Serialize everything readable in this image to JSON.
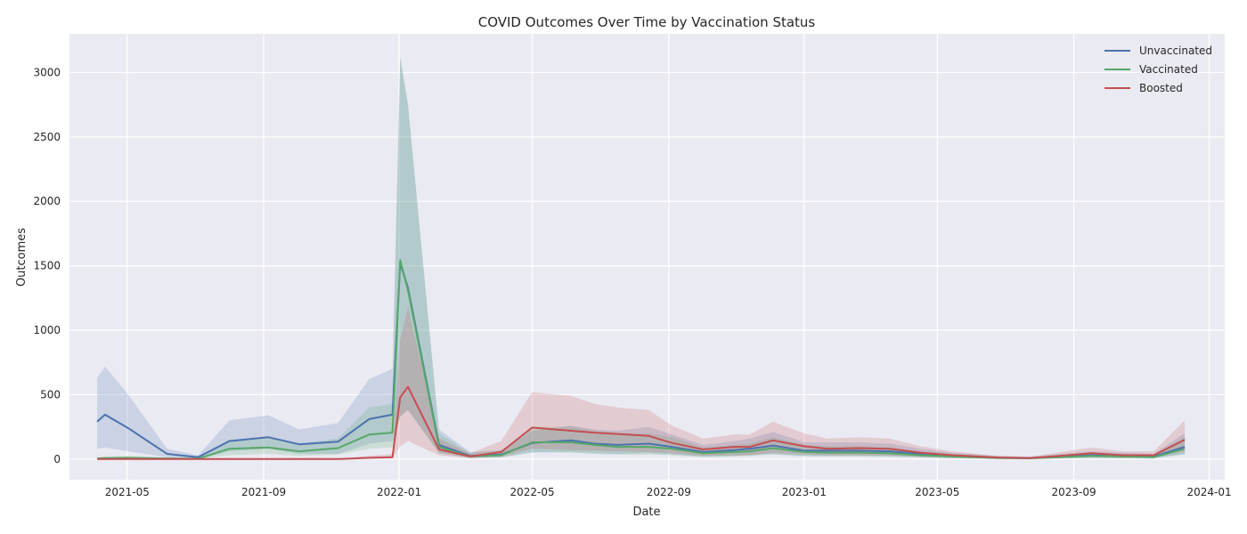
{
  "chart_data": {
    "type": "line",
    "title": "COVID Outcomes Over Time by Vaccination Status",
    "xlabel": "Date",
    "ylabel": "Outcomes",
    "xlim": [
      "2021-03-10",
      "2024-01-15"
    ],
    "ylim": [
      -160,
      3300
    ],
    "grid": true,
    "legend_position": "top-right",
    "x_ticks": [
      {
        "date": "2021-05-01",
        "label": "2021-05"
      },
      {
        "date": "2021-09-01",
        "label": "2021-09"
      },
      {
        "date": "2022-01-01",
        "label": "2022-01"
      },
      {
        "date": "2022-05-01",
        "label": "2022-05"
      },
      {
        "date": "2022-09-01",
        "label": "2022-09"
      },
      {
        "date": "2023-01-01",
        "label": "2023-01"
      },
      {
        "date": "2023-05-01",
        "label": "2023-05"
      },
      {
        "date": "2023-09-01",
        "label": "2023-09"
      },
      {
        "date": "2024-01-01",
        "label": "2024-01"
      }
    ],
    "y_ticks": [
      {
        "value": 0,
        "label": "0"
      },
      {
        "value": 500,
        "label": "500"
      },
      {
        "value": 1000,
        "label": "1000"
      },
      {
        "value": 1500,
        "label": "1500"
      },
      {
        "value": 2000,
        "label": "2000"
      },
      {
        "value": 2500,
        "label": "2500"
      },
      {
        "value": 3000,
        "label": "3000"
      }
    ],
    "x": [
      "2021-04-04",
      "2021-04-11",
      "2021-05-02",
      "2021-06-06",
      "2021-07-04",
      "2021-08-01",
      "2021-09-05",
      "2021-10-03",
      "2021-11-07",
      "2021-12-05",
      "2021-12-26",
      "2022-01-02",
      "2022-01-09",
      "2022-02-06",
      "2022-03-06",
      "2022-04-03",
      "2022-05-01",
      "2022-06-05",
      "2022-06-26",
      "2022-07-17",
      "2022-08-14",
      "2022-09-04",
      "2022-10-02",
      "2022-10-30",
      "2022-11-13",
      "2022-12-04",
      "2023-01-01",
      "2023-01-22",
      "2023-02-19",
      "2023-03-19",
      "2023-04-16",
      "2023-05-14",
      "2023-06-25",
      "2023-07-23",
      "2023-08-20",
      "2023-09-17",
      "2023-10-15",
      "2023-11-12",
      "2023-12-10"
    ],
    "series": [
      {
        "name": "Unvaccinated",
        "color": "#4c72b0",
        "values": [
          290,
          345,
          240,
          40,
          15,
          140,
          170,
          115,
          135,
          310,
          345,
          1520,
          1330,
          110,
          25,
          35,
          125,
          145,
          120,
          110,
          120,
          95,
          55,
          70,
          80,
          105,
          65,
          65,
          65,
          60,
          40,
          25,
          10,
          8,
          20,
          30,
          25,
          20,
          95
        ],
        "ci_low": [
          80,
          90,
          60,
          15,
          5,
          60,
          80,
          40,
          40,
          120,
          140,
          330,
          380,
          50,
          10,
          15,
          50,
          55,
          45,
          40,
          45,
          35,
          20,
          25,
          30,
          40,
          25,
          25,
          25,
          20,
          15,
          8,
          3,
          2,
          8,
          10,
          8,
          8,
          40
        ],
        "ci_high": [
          630,
          720,
          500,
          80,
          30,
          300,
          340,
          230,
          280,
          620,
          700,
          3120,
          2750,
          230,
          55,
          70,
          220,
          260,
          230,
          220,
          250,
          190,
          110,
          140,
          160,
          210,
          130,
          130,
          130,
          120,
          80,
          50,
          25,
          18,
          40,
          60,
          50,
          40,
          200
        ]
      },
      {
        "name": "Vaccinated",
        "color": "#55a868",
        "values": [
          5,
          8,
          10,
          5,
          3,
          80,
          90,
          60,
          85,
          190,
          205,
          1545,
          1310,
          95,
          20,
          30,
          130,
          130,
          110,
          95,
          95,
          80,
          45,
          55,
          60,
          85,
          55,
          50,
          50,
          45,
          30,
          20,
          8,
          6,
          15,
          25,
          20,
          15,
          80
        ],
        "ci_low": [
          0,
          0,
          0,
          0,
          0,
          30,
          40,
          25,
          35,
          80,
          90,
          330,
          380,
          45,
          8,
          12,
          55,
          50,
          40,
          35,
          35,
          30,
          15,
          20,
          25,
          35,
          20,
          20,
          20,
          18,
          12,
          6,
          2,
          2,
          6,
          8,
          6,
          5,
          35
        ],
        "ci_high": [
          15,
          20,
          25,
          12,
          8,
          150,
          170,
          120,
          160,
          400,
          430,
          3120,
          2750,
          200,
          45,
          65,
          250,
          250,
          220,
          200,
          200,
          170,
          90,
          110,
          120,
          170,
          110,
          100,
          100,
          90,
          60,
          40,
          20,
          15,
          35,
          50,
          40,
          35,
          170
        ]
      },
      {
        "name": "Boosted",
        "color": "#c44e52",
        "values": [
          0,
          0,
          0,
          0,
          0,
          0,
          0,
          0,
          0,
          10,
          15,
          480,
          560,
          75,
          20,
          55,
          245,
          220,
          205,
          195,
          180,
          125,
          75,
          95,
          95,
          145,
          100,
          80,
          85,
          80,
          50,
          30,
          12,
          8,
          25,
          45,
          30,
          30,
          150
        ],
        "ci_low": [
          0,
          0,
          0,
          0,
          0,
          0,
          0,
          0,
          0,
          2,
          5,
          100,
          140,
          30,
          8,
          20,
          80,
          70,
          65,
          60,
          55,
          45,
          25,
          30,
          30,
          50,
          35,
          30,
          30,
          28,
          18,
          10,
          4,
          2,
          8,
          15,
          10,
          10,
          60
        ],
        "ci_high": [
          0,
          0,
          0,
          0,
          0,
          0,
          0,
          0,
          0,
          25,
          40,
          930,
          1180,
          160,
          45,
          140,
          520,
          490,
          430,
          400,
          380,
          260,
          160,
          190,
          190,
          290,
          200,
          160,
          170,
          160,
          100,
          60,
          25,
          18,
          55,
          90,
          60,
          60,
          300
        ]
      }
    ]
  }
}
